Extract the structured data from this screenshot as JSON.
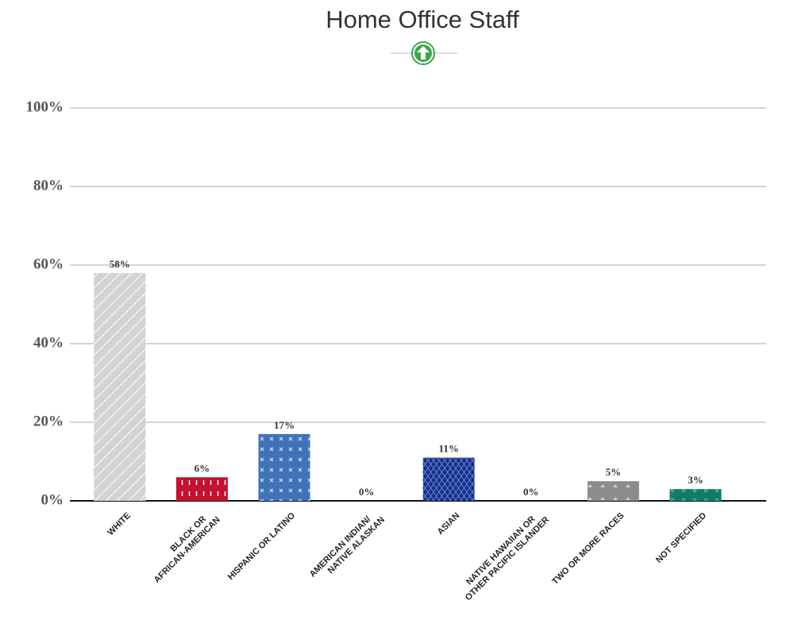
{
  "chart_data": {
    "type": "bar",
    "title": "Home Office Staff",
    "categories": [
      [
        "WHITE"
      ],
      [
        "BLACK OR",
        "AFRICAN-AMERICAN"
      ],
      [
        "HISPANIC OR LATINO"
      ],
      [
        "AMERICAN INDIAN/",
        "NATIVE ALASKAN"
      ],
      [
        "ASIAN"
      ],
      [
        "NATIVE HAWAIIAN OR",
        "OTHER PACIFIC ISLANDER"
      ],
      [
        "TWO OR MORE RACES"
      ],
      [
        "NOT SPECIFIED"
      ]
    ],
    "values": [
      58,
      6,
      17,
      0,
      11,
      0,
      5,
      3
    ],
    "value_labels": [
      "58%",
      "6%",
      "17%",
      "0%",
      "11%",
      "0%",
      "5%",
      "3%"
    ],
    "colors": [
      "#d3d3d3",
      "#c41230",
      "#3f72b8",
      "#1d2c7c",
      "#1d2c7c",
      "#1d2c7c",
      "#8c8c8e",
      "#0f7d6c"
    ],
    "ylim": [
      0,
      100
    ],
    "yticks": [
      {
        "value": 0,
        "label": "0%"
      },
      {
        "value": 20,
        "label": "20%"
      },
      {
        "value": 40,
        "label": "40%"
      },
      {
        "value": 60,
        "label": "60%"
      },
      {
        "value": 80,
        "label": "80%"
      },
      {
        "value": 100,
        "label": "100%"
      }
    ],
    "grid": true
  }
}
